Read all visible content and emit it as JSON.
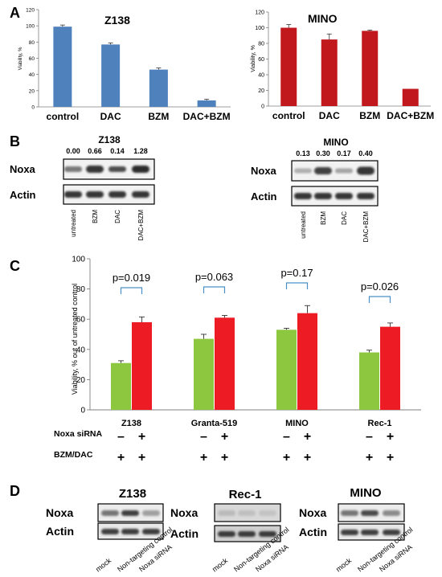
{
  "panels": {
    "A": "A",
    "B": "B",
    "C": "C",
    "D": "D"
  },
  "chart_data": [
    {
      "type": "bar",
      "title": "Z138",
      "ylabel": "Viability, %",
      "categories": [
        "control",
        "DAC",
        "BZM",
        "DAC+BZM"
      ],
      "values": [
        99,
        77,
        46,
        8
      ],
      "errors": [
        2,
        2,
        2,
        1.5
      ],
      "ylim": [
        0,
        120
      ],
      "yticks": [
        "0",
        "20",
        "40",
        "60",
        "80",
        "100",
        "120"
      ],
      "color": "#4f81bd"
    },
    {
      "type": "bar",
      "title": "MINO",
      "ylabel": "Viability, %",
      "categories": [
        "control",
        "DAC",
        "BZM",
        "DAC+BZM"
      ],
      "values": [
        100,
        85,
        96,
        22
      ],
      "errors": [
        4,
        7,
        1,
        0
      ],
      "ylim": [
        0,
        120
      ],
      "yticks": [
        "0",
        "20",
        "40",
        "60",
        "80",
        "100",
        "120"
      ],
      "color": "#c0181c"
    },
    {
      "type": "bar",
      "ylabel": "Viability, % out of untreated control",
      "categories": [
        "Z138",
        "Granta-519",
        "MINO",
        "Rec-1"
      ],
      "series": [
        {
          "values": [
            31,
            47,
            53,
            38
          ],
          "errors": [
            1.5,
            3,
            1,
            1.5
          ],
          "color": "#8dc63f"
        },
        {
          "values": [
            58,
            61,
            64,
            55
          ],
          "errors": [
            3.5,
            1.5,
            5,
            2.5
          ],
          "color": "#ed1c24"
        }
      ],
      "ylim": [
        0,
        100
      ],
      "yticks": [
        "0",
        "20",
        "40",
        "60",
        "80",
        "100"
      ],
      "pvalues": [
        "p=0.019",
        "p=0.063",
        "p=0.17",
        "p=0.026"
      ],
      "rows": [
        {
          "label": "Noxa siRNA",
          "marks": [
            "–",
            "+",
            "–",
            "+",
            "–",
            "+",
            "–",
            "+"
          ]
        },
        {
          "label": "BZM/DAC",
          "marks": [
            "+",
            "+",
            "+",
            "+",
            "+",
            "+",
            "+",
            "+"
          ]
        }
      ]
    }
  ],
  "blots_b": [
    {
      "title": "Z138",
      "values": [
        "0.00",
        "0.66",
        "0.14",
        "1.28"
      ],
      "rows": [
        "Noxa",
        "Actin"
      ],
      "lanes": [
        "untreated",
        "BZM",
        "DAC",
        "DAC+BZM"
      ]
    },
    {
      "title": "MINO",
      "values": [
        "0.13",
        "0.30",
        "0.17",
        "0.40"
      ],
      "rows": [
        "Noxa",
        "Actin"
      ],
      "lanes": [
        "untreated",
        "BZM",
        "DAC",
        "DAC+BZM"
      ]
    }
  ],
  "blots_d": [
    {
      "title": "Z138",
      "rows": [
        "Noxa",
        "Actin"
      ],
      "lanes": [
        "mock",
        "Non-targeting control",
        "Noxa siRNA"
      ]
    },
    {
      "title": "Rec-1",
      "rows": [
        "Noxa",
        "Actin"
      ],
      "lanes": [
        "mock",
        "Non-targeting control",
        "Noxa siRNA"
      ]
    },
    {
      "title": "MINO",
      "rows": [
        "Noxa",
        "Actin"
      ],
      "lanes": [
        "mock",
        "Non-targeting control",
        "Noxa siRNA"
      ]
    }
  ]
}
